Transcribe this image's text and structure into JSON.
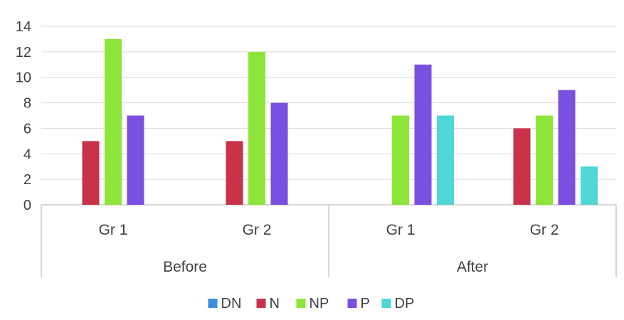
{
  "chart_data": {
    "type": "bar",
    "title": "",
    "xlabel": "",
    "ylabel": "",
    "ylim": [
      0,
      14
    ],
    "yticks": [
      0,
      2,
      4,
      6,
      8,
      10,
      12,
      14
    ],
    "grid": true,
    "legend_position": "bottom",
    "groups": [
      {
        "label": "Before",
        "categories": [
          "Gr 1",
          "Gr 2"
        ]
      },
      {
        "label": "After",
        "categories": [
          "Gr 1",
          "Gr 2"
        ]
      }
    ],
    "categories": [
      "Gr 1",
      "Gr 2",
      "Gr 1",
      "Gr 2"
    ],
    "series": [
      {
        "name": "DN",
        "color": "#3d8fe0",
        "values": [
          0,
          0,
          0,
          0
        ]
      },
      {
        "name": "N",
        "color": "#c8334a",
        "values": [
          5,
          5,
          0,
          6
        ]
      },
      {
        "name": "NP",
        "color": "#8ee53a",
        "values": [
          13,
          12,
          7,
          7
        ]
      },
      {
        "name": "P",
        "color": "#7b4fe0",
        "values": [
          7,
          8,
          11,
          9
        ]
      },
      {
        "name": "DP",
        "color": "#4fd6d6",
        "values": [
          0,
          0,
          7,
          3
        ]
      }
    ]
  }
}
